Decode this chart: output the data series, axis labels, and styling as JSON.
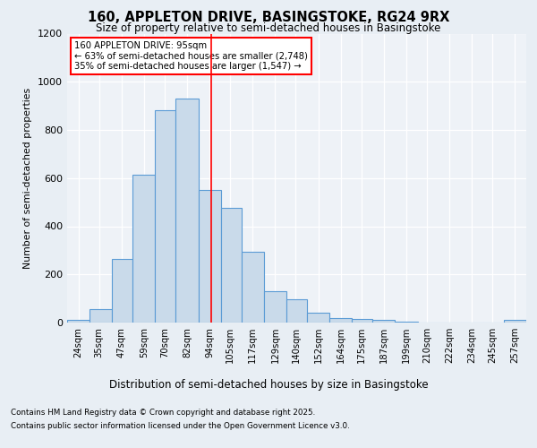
{
  "title1": "160, APPLETON DRIVE, BASINGSTOKE, RG24 9RX",
  "title2": "Size of property relative to semi-detached houses in Basingstoke",
  "xlabel": "Distribution of semi-detached houses by size in Basingstoke",
  "ylabel": "Number of semi-detached properties",
  "categories": [
    "24sqm",
    "35sqm",
    "47sqm",
    "59sqm",
    "70sqm",
    "82sqm",
    "94sqm",
    "105sqm",
    "117sqm",
    "129sqm",
    "140sqm",
    "152sqm",
    "164sqm",
    "175sqm",
    "187sqm",
    "199sqm",
    "210sqm",
    "222sqm",
    "234sqm",
    "245sqm",
    "257sqm"
  ],
  "cat_positions": [
    24,
    35,
    47,
    59,
    70,
    82,
    94,
    105,
    117,
    129,
    140,
    152,
    164,
    175,
    187,
    199,
    210,
    222,
    234,
    245,
    257
  ],
  "bin_edges": [
    18,
    30,
    42,
    53,
    65,
    76,
    88,
    100,
    111,
    123,
    135,
    146,
    158,
    170,
    181,
    193,
    205,
    216,
    228,
    240,
    251,
    263
  ],
  "counts": [
    10,
    55,
    265,
    615,
    880,
    930,
    550,
    475,
    295,
    130,
    95,
    40,
    20,
    15,
    10,
    5,
    0,
    0,
    0,
    0,
    10
  ],
  "bar_color": "#c9daea",
  "bar_edge_color": "#5b9bd5",
  "vline_x": 95,
  "vline_color": "red",
  "annotation_title": "160 APPLETON DRIVE: 95sqm",
  "annotation_line1": "← 63% of semi-detached houses are smaller (2,748)",
  "annotation_line2": "35% of semi-detached houses are larger (1,547) →",
  "ylim": [
    0,
    1200
  ],
  "yticks": [
    0,
    200,
    400,
    600,
    800,
    1000,
    1200
  ],
  "xlim": [
    18,
    263
  ],
  "footnote1": "Contains HM Land Registry data © Crown copyright and database right 2025.",
  "footnote2": "Contains public sector information licensed under the Open Government Licence v3.0.",
  "bg_color": "#e8eef4",
  "plot_bg_color": "#eef2f7"
}
